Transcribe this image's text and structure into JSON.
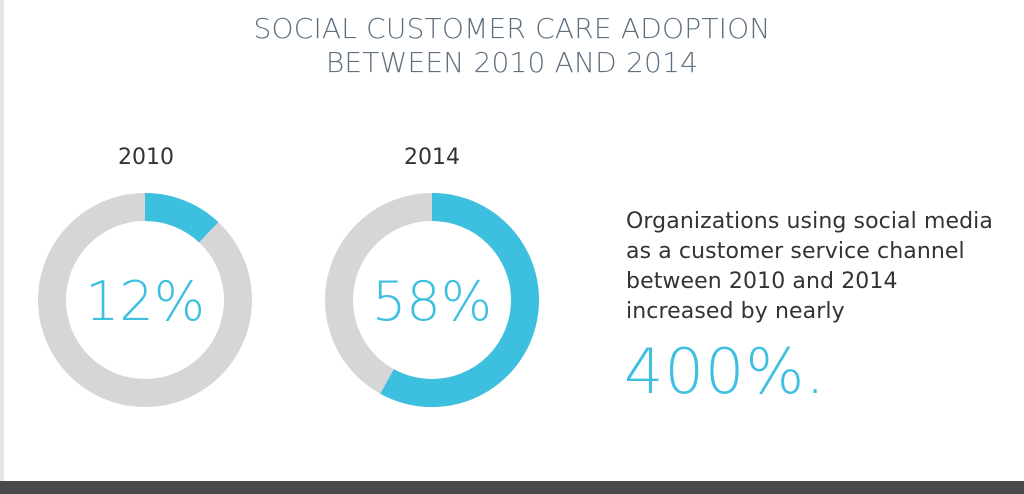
{
  "title": {
    "line1": "SOCIAL CUSTOMER CARE ADOPTION",
    "line2": "BETWEEN 2010 AND 2014"
  },
  "chart_data": {
    "type": "pie",
    "variant": "donut",
    "title": "SOCIAL CUSTOMER CARE ADOPTION BETWEEN 2010 AND 2014",
    "charts": [
      {
        "label": "2010",
        "value": 12,
        "value_label": "12%"
      },
      {
        "label": "2014",
        "value": 58,
        "value_label": "58%"
      }
    ],
    "max": 100,
    "colors": {
      "filled": "#3dbfe0",
      "remaining": "#d6d6d8",
      "percent_text": "#3dbfe0"
    }
  },
  "description": {
    "lines": [
      "Organizations using social media",
      "as a customer service channel",
      "between 2010 and 2014",
      "increased by nearly"
    ],
    "stat": "400%."
  }
}
